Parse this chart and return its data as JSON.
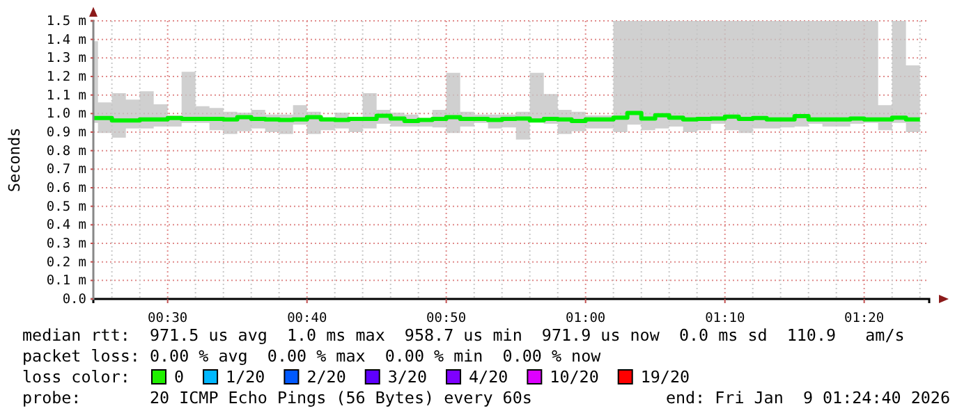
{
  "chart_data": {
    "type": "step",
    "ylabel": "Seconds",
    "x": [
      0.4111,
      0.4167,
      0.4333,
      0.45,
      0.4667,
      0.4833,
      0.5,
      0.5167,
      0.5333,
      0.55,
      0.5667,
      0.5833,
      0.6,
      0.6167,
      0.6333,
      0.65,
      0.6667,
      0.6833,
      0.7,
      0.7167,
      0.7333,
      0.75,
      0.7667,
      0.7833,
      0.8,
      0.8167,
      0.8333,
      0.85,
      0.8667,
      0.8833,
      0.9,
      0.9167,
      0.9333,
      0.95,
      0.9667,
      0.9833,
      1,
      1.0167,
      1.0333,
      1.05,
      1.0667,
      1.0833,
      1.1,
      1.1167,
      1.1333,
      1.15,
      1.1667,
      1.1833,
      1.2,
      1.2167,
      1.2333,
      1.25,
      1.2667,
      1.2833,
      1.3,
      1.3167,
      1.3333,
      1.35,
      1.3667,
      1.3833,
      1.4
    ],
    "series": [
      {
        "color": "#00f000",
        "values": [
          0.976,
          0.976,
          0.963,
          0.963,
          0.968,
          0.968,
          0.976,
          0.971,
          0.971,
          0.971,
          0.968,
          0.981,
          0.971,
          0.968,
          0.966,
          0.968,
          0.981,
          0.968,
          0.966,
          0.971,
          0.971,
          0.988,
          0.973,
          0.96,
          0.966,
          0.971,
          0.981,
          0.971,
          0.971,
          0.966,
          0.971,
          0.973,
          0.963,
          0.971,
          0.968,
          0.96,
          0.968,
          0.968,
          0.978,
          1.003,
          0.973,
          0.991,
          0.978,
          0.968,
          0.971,
          0.973,
          0.983,
          0.971,
          0.976,
          0.968,
          0.968,
          0.986,
          0.968,
          0.968,
          0.968,
          0.973,
          0.968,
          0.968,
          0.978,
          0.968,
          0.968
        ],
        "lower": [
          0.95,
          0.895,
          0.87,
          0.92,
          0.92,
          0.93,
          0.93,
          0.95,
          0.95,
          0.91,
          0.89,
          0.905,
          0.92,
          0.9,
          0.89,
          0.94,
          0.89,
          0.91,
          0.92,
          0.9,
          0.92,
          0.945,
          0.93,
          0.93,
          0.93,
          0.925,
          0.895,
          0.93,
          0.95,
          0.92,
          0.925,
          0.86,
          0.955,
          0.945,
          0.89,
          0.905,
          0.92,
          0.92,
          0.9,
          0.94,
          0.91,
          0.92,
          0.93,
          0.9,
          0.91,
          0.945,
          0.91,
          0.895,
          0.92,
          0.92,
          0.925,
          0.93,
          0.945,
          0.93,
          0.93,
          0.945,
          0.95,
          0.91,
          0.95,
          0.9,
          0.9
        ],
        "upper": [
          1.39,
          1.06,
          1.11,
          1.075,
          1.12,
          1.05,
          0.99,
          1.225,
          1.04,
          1.03,
          1.01,
          1.005,
          1.02,
          0.995,
          0.995,
          1.045,
          1.01,
          0.98,
          1.005,
          0.98,
          1.11,
          1.02,
          1.005,
          0.995,
          0.975,
          1.02,
          1.22,
          1.01,
          0.995,
          0.995,
          0.995,
          1.01,
          1.22,
          1.105,
          1.02,
          1.01,
          0.99,
          0.99,
          1.5,
          1.5,
          1.5,
          1.5,
          1.5,
          1.5,
          1.5,
          1.5,
          1.5,
          1.5,
          1.5,
          1.5,
          1.5,
          1.5,
          1.5,
          1.5,
          1.5,
          1.5,
          1.5,
          1.045,
          1.5,
          1.26,
          1.26
        ]
      }
    ],
    "xlim": [
      0.4111,
      1.4111
    ],
    "xticks": [
      {
        "value": 0.4333,
        "label": null
      },
      {
        "value": 0.4667,
        "label": null
      },
      {
        "value": 0.5,
        "label": "00:30"
      },
      {
        "value": 0.5333,
        "label": null
      },
      {
        "value": 0.5667,
        "label": null
      },
      {
        "value": 0.6,
        "label": null
      },
      {
        "value": 0.6333,
        "label": null
      },
      {
        "value": 0.6667,
        "label": "00:40"
      },
      {
        "value": 0.7,
        "label": null
      },
      {
        "value": 0.7333,
        "label": null
      },
      {
        "value": 0.7667,
        "label": null
      },
      {
        "value": 0.8,
        "label": null
      },
      {
        "value": 0.8333,
        "label": "00:50"
      },
      {
        "value": 0.8667,
        "label": null
      },
      {
        "value": 0.9,
        "label": null
      },
      {
        "value": 0.9333,
        "label": null
      },
      {
        "value": 0.9667,
        "label": null
      },
      {
        "value": 1,
        "label": "01:00"
      },
      {
        "value": 1.0333,
        "label": null
      },
      {
        "value": 1.0667,
        "label": null
      },
      {
        "value": 1.1,
        "label": null
      },
      {
        "value": 1.1333,
        "label": null
      },
      {
        "value": 1.1667,
        "label": "01:10"
      },
      {
        "value": 1.2,
        "label": null
      },
      {
        "value": 1.2333,
        "label": null
      },
      {
        "value": 1.2667,
        "label": null
      },
      {
        "value": 1.3,
        "label": null
      },
      {
        "value": 1.3333,
        "label": "01:20"
      },
      {
        "value": 1.3667,
        "label": null
      },
      {
        "value": 1.4,
        "label": null
      }
    ],
    "ylim": [
      0,
      1.5
    ],
    "yticks": [
      {
        "value": 0,
        "label": "0.0"
      },
      {
        "value": 0.1,
        "label": "0.1 m"
      },
      {
        "value": 0.2,
        "label": "0.2 m"
      },
      {
        "value": 0.3,
        "label": "0.3 m"
      },
      {
        "value": 0.4,
        "label": "0.4 m"
      },
      {
        "value": 0.5,
        "label": "0.5 m"
      },
      {
        "value": 0.6,
        "label": "0.6 m"
      },
      {
        "value": 0.7,
        "label": "0.7 m"
      },
      {
        "value": 0.8,
        "label": "0.8 m"
      },
      {
        "value": 0.9,
        "label": "0.9 m"
      },
      {
        "value": 1,
        "label": "1.0 m"
      },
      {
        "value": 1.1,
        "label": "1.1 m"
      },
      {
        "value": 1.2,
        "label": "1.2 m"
      },
      {
        "value": 1.3,
        "label": "1.3 m"
      },
      {
        "value": 1.4,
        "label": "1.4 m"
      },
      {
        "value": 1.5,
        "label": "1.5 m"
      }
    ],
    "grid": true,
    "marker": "none",
    "line_style": "solid",
    "annotations": [
      "median rtt:  971.5 us avg  1.0 ms max  958.7 us min  971.9 us now  0.0 ms sd  110.9   am/s",
      "packet loss: 0.00 % avg  0.00 % max  0.00 % min  0.00 % now",
      "loss color:",
      "0",
      "1/20",
      "2/20",
      "3/20",
      "4/20",
      "10/20",
      "19/20",
      "probe:       20 ICMP Echo Pings (56 Bytes) every 60s",
      "end: Fri Jan  9 01:24:40 2026"
    ]
  }
}
